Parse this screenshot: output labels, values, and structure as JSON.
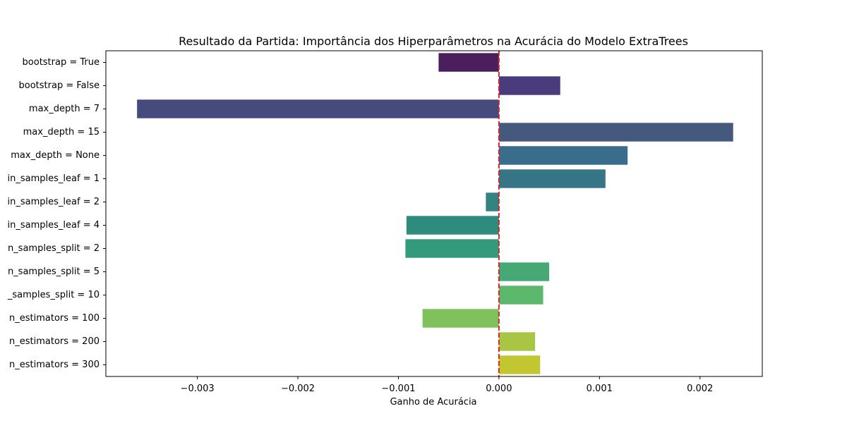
{
  "chart_data": {
    "type": "bar",
    "orientation": "horizontal",
    "title": "Resultado da Partida: Importância dos Hiperparâmetros na Acurácia do Modelo ExtraTrees",
    "xlabel": "Ganho de Acurácia",
    "ylabel": "",
    "xlim": [
      -0.00391,
      0.00262
    ],
    "xticks": [
      -0.003,
      -0.002,
      -0.001,
      0.0,
      0.001,
      0.002
    ],
    "xtick_labels": [
      "−0.003",
      "−0.002",
      "−0.001",
      "0.000",
      "0.001",
      "0.002"
    ],
    "grid": false,
    "reference_line": {
      "x": 0.0,
      "color": "#d62728",
      "style": "dashed"
    },
    "categories": [
      "bootstrap = True",
      "bootstrap = False",
      "max_depth = 7",
      "max_depth = 15",
      "max_depth = None",
      "in_samples_leaf = 1",
      "in_samples_leaf = 2",
      "in_samples_leaf = 4",
      "n_samples_split = 2",
      "n_samples_split = 5",
      "_samples_split = 10",
      "n_estimators = 100",
      "n_estimators = 200",
      "n_estimators = 300"
    ],
    "values": [
      -0.0006,
      0.00061,
      -0.0036,
      0.00233,
      0.00128,
      0.00106,
      -0.00013,
      -0.00092,
      -0.00093,
      0.0005,
      0.00044,
      -0.00076,
      0.00036,
      0.00041
    ],
    "colors": [
      "#4c1e5e",
      "#4a3b7c",
      "#474a7c",
      "#45587e",
      "#3a6d8c",
      "#357585",
      "#328382",
      "#2e8b7e",
      "#339a7c",
      "#46a874",
      "#5bb86d",
      "#7fc25d",
      "#a8c544",
      "#c2c731"
    ]
  }
}
